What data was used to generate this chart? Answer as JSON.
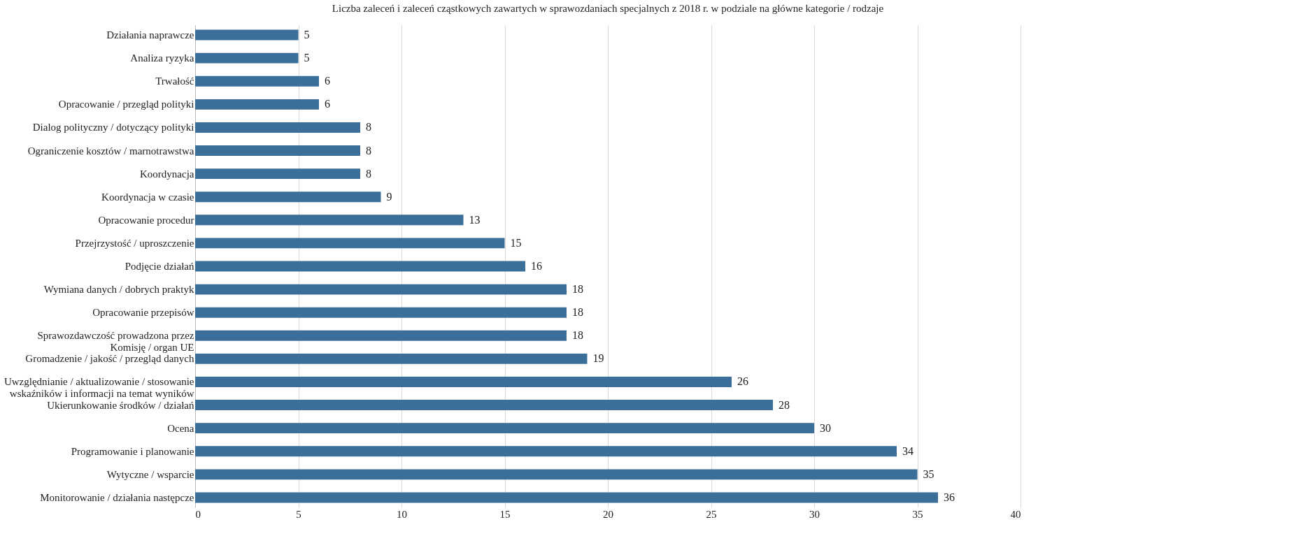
{
  "chart_data": {
    "type": "bar",
    "orientation": "horizontal",
    "title": "Liczba zaleceń i zaleceń cząstkowych zawartych w sprawozdaniach specjalnych z 2018 r. w podziale na główne kategorie / rodzaje",
    "categories": [
      "Działania naprawcze",
      "Analiza ryzyka",
      "Trwałość",
      "Opracowanie / przegląd polityki",
      "Dialog polityczny / dotyczący polityki",
      "Ograniczenie kosztów / marnotrawstwa",
      "Koordynacja",
      "Koordynacja w czasie",
      "Opracowanie procedur",
      "Przejrzystość / uproszczenie",
      "Podjęcie działań",
      "Wymiana danych / dobrych praktyk",
      "Opracowanie przepisów",
      "Sprawozdawczość prowadzona przez\nKomisję / organ UE",
      "Gromadzenie / jakość / przegląd danych",
      "Uwzględnianie / aktualizowanie / stosowanie\nwskaźników i informacji na temat wyników",
      "Ukierunkowanie środków / działań",
      "Ocena",
      "Programowanie i planowanie",
      "Wytyczne / wsparcie",
      "Monitorowanie / działania następcze"
    ],
    "values": [
      5,
      5,
      6,
      6,
      8,
      8,
      8,
      9,
      13,
      15,
      16,
      18,
      18,
      18,
      19,
      26,
      28,
      30,
      34,
      35,
      36
    ],
    "color": "#3b6e98",
    "xlim": [
      0,
      40
    ],
    "xticks": [
      0,
      5,
      10,
      15,
      20,
      25,
      30,
      35,
      40
    ],
    "grid": "x",
    "data_labels": true
  }
}
